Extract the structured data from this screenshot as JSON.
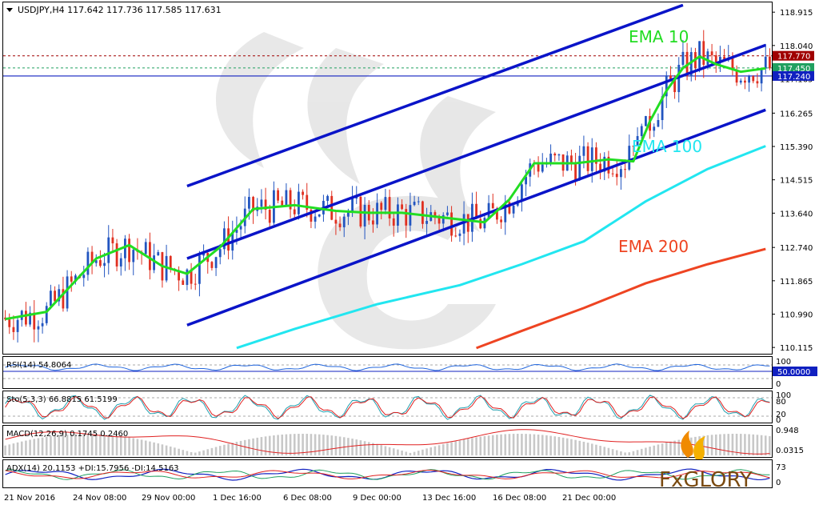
{
  "header": {
    "symbol_line": "USDJPY,H4  117.642 117.736 117.585 117.631",
    "menu_icon": "triangle-down-icon"
  },
  "watermark": {
    "text": "FxGLORY",
    "logo_icon": "flame-icon"
  },
  "colors": {
    "ema10": "#22dd22",
    "ema100": "#22e6f0",
    "ema200": "#ee4422",
    "channel": "#0a14c8",
    "bull": "#2255c0",
    "bear": "#e03020",
    "axis": "#000000"
  },
  "chart_data": [
    {
      "type": "line",
      "title": "",
      "pane": "price",
      "labels": [
        "EMA 10",
        "EMA 100",
        "EMA 200"
      ],
      "y_ticks": [
        "118.915",
        "118.040",
        "117.165",
        "116.265",
        "115.390",
        "114.515",
        "113.640",
        "112.740",
        "111.865",
        "110.990",
        "110.115"
      ],
      "ylim": [
        110.115,
        118.915
      ],
      "price_levels": [
        {
          "label": "117.770",
          "value": 117.77,
          "color": "#a00000"
        },
        {
          "label": "117.450",
          "value": 117.45,
          "color": "#20a060"
        },
        {
          "label": "117.240",
          "value": 117.24,
          "color": "#1020c0"
        }
      ],
      "x_ticks": [
        "21 Nov 2016",
        "24 Nov 08:00",
        "29 Nov 00:00",
        "1 Dec 16:00",
        "6 Dec 08:00",
        "9 Dec 00:00",
        "13 Dec 16:00",
        "16 Dec 08:00",
        "21 Dec 00:00"
      ],
      "series": [
        {
          "name": "EMA 10",
          "x": [
            0,
            10,
            22,
            30,
            38,
            44,
            52,
            60,
            70,
            80,
            88,
            96,
            104,
            116,
            122,
            128,
            138,
            146,
            152,
            156,
            160,
            164,
            168,
            172,
            178,
            184
          ],
          "y": [
            110.86,
            111.05,
            112.45,
            112.8,
            112.25,
            112.05,
            112.75,
            113.75,
            113.85,
            113.7,
            113.65,
            113.65,
            113.55,
            113.4,
            114.0,
            114.95,
            114.95,
            115.05,
            115.0,
            116.05,
            116.85,
            117.45,
            117.75,
            117.55,
            117.35,
            117.44
          ]
        },
        {
          "name": "EMA 100",
          "x": [
            56,
            70,
            90,
            110,
            125,
            140,
            155,
            170,
            184
          ],
          "y": [
            110.1,
            110.6,
            111.25,
            111.75,
            112.3,
            112.9,
            113.95,
            114.8,
            115.4
          ]
        },
        {
          "name": "EMA 200",
          "x": [
            114,
            125,
            140,
            155,
            170,
            184
          ],
          "y": [
            110.1,
            110.55,
            111.15,
            111.8,
            112.3,
            112.7
          ]
        }
      ],
      "channel_lines": [
        {
          "name": "upper",
          "x": [
            44,
            164
          ],
          "y": [
            114.35,
            119.1
          ]
        },
        {
          "name": "middle",
          "x": [
            44,
            184
          ],
          "y": [
            112.45,
            118.05
          ]
        },
        {
          "name": "lower",
          "x": [
            44,
            184
          ],
          "y": [
            110.7,
            116.35
          ]
        }
      ]
    },
    {
      "type": "line",
      "title": "RSI(14) 54.8064",
      "pane": "rsi",
      "y_ticks": [
        "100",
        "50.0000",
        "0"
      ],
      "ylim": [
        0,
        100
      ],
      "levels": [
        70,
        30
      ],
      "value": 54.8064
    },
    {
      "type": "line",
      "title": "Sto(5,3,3) 66.8815 61.5199",
      "pane": "stoch",
      "y_ticks": [
        "100",
        "80",
        "20",
        "0"
      ],
      "ylim": [
        0,
        100
      ],
      "series": [
        {
          "name": "%K",
          "value": 66.8815
        },
        {
          "name": "%D",
          "value": 61.5199
        }
      ]
    },
    {
      "type": "bar",
      "title": "MACD(12,26,9) 0.1745 0.2460",
      "pane": "macd",
      "y_ticks": [
        "0.948",
        "0.0315"
      ],
      "ylim": [
        0.0315,
        0.948
      ],
      "series": [
        {
          "name": "MACD",
          "value": 0.1745
        },
        {
          "name": "Signal",
          "value": 0.246
        }
      ]
    },
    {
      "type": "line",
      "title": "ADX(14) 20.1153 +DI:15.7956 -DI:14.5163",
      "pane": "adx",
      "y_ticks": [
        "73",
        "0"
      ],
      "ylim": [
        0,
        73
      ],
      "series": [
        {
          "name": "ADX",
          "value": 20.1153
        },
        {
          "name": "+DI",
          "value": 15.7956
        },
        {
          "name": "-DI",
          "value": 14.5163
        }
      ]
    }
  ]
}
